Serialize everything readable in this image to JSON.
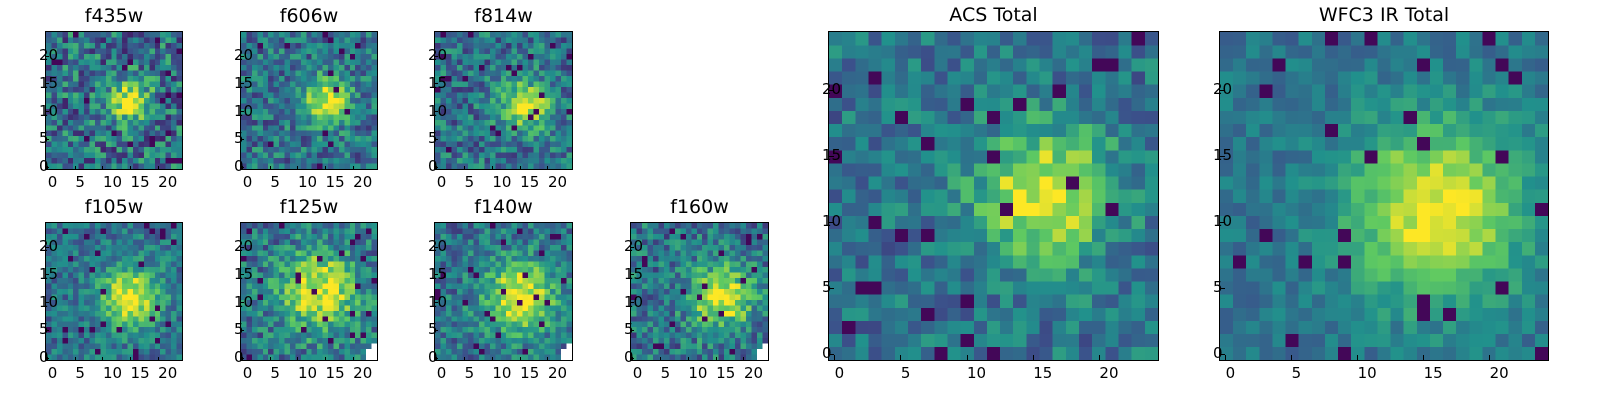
{
  "colormap": [
    "#440154",
    "#3b528b",
    "#21918c",
    "#5ec962",
    "#fde725"
  ],
  "chart_data": [
    {
      "type": "heatmap",
      "title": "f435w",
      "grid_size": 25,
      "peak": [
        12,
        15
      ],
      "spread": 2.6,
      "noise": 0.55,
      "blank_corner": false,
      "xticks": [
        0,
        5,
        10,
        15,
        20
      ],
      "yticks": [
        0,
        5,
        10,
        15,
        20
      ]
    },
    {
      "type": "heatmap",
      "title": "f606w",
      "grid_size": 25,
      "peak": [
        12,
        15
      ],
      "spread": 3.0,
      "noise": 0.45,
      "blank_corner": false,
      "xticks": [
        0,
        5,
        10,
        15,
        20
      ],
      "yticks": [
        0,
        5,
        10,
        15,
        20
      ]
    },
    {
      "type": "heatmap",
      "title": "f814w",
      "grid_size": 25,
      "peak": [
        11,
        16
      ],
      "spread": 3.0,
      "noise": 0.45,
      "blank_corner": false,
      "xticks": [
        0,
        5,
        10,
        15,
        20
      ],
      "yticks": [
        0,
        5,
        10,
        15,
        20
      ]
    },
    {
      "type": "heatmap",
      "title": "f105w",
      "grid_size": 25,
      "peak": [
        11,
        15
      ],
      "spread": 3.8,
      "noise": 0.35,
      "blank_corner": false,
      "xticks": [
        0,
        5,
        10,
        15,
        20
      ],
      "yticks": [
        0,
        5,
        10,
        15,
        20
      ]
    },
    {
      "type": "heatmap",
      "title": "f125w",
      "grid_size": 25,
      "peak": [
        12,
        14
      ],
      "spread": 5.0,
      "noise": 0.45,
      "blank_corner": true,
      "xticks": [
        0,
        5,
        10,
        15,
        20
      ],
      "yticks": [
        0,
        5,
        10,
        15,
        20
      ]
    },
    {
      "type": "heatmap",
      "title": "f140w",
      "grid_size": 25,
      "peak": [
        11,
        15
      ],
      "spread": 4.5,
      "noise": 0.4,
      "blank_corner": true,
      "xticks": [
        0,
        5,
        10,
        15,
        20
      ],
      "yticks": [
        0,
        5,
        10,
        15,
        20
      ]
    },
    {
      "type": "heatmap",
      "title": "f160w",
      "grid_size": 25,
      "peak": [
        11,
        16
      ],
      "spread": 4.0,
      "noise": 0.45,
      "blank_corner": true,
      "xticks": [
        0,
        5,
        10,
        15,
        20
      ],
      "yticks": [
        0,
        5,
        10,
        15,
        20
      ]
    },
    {
      "type": "heatmap",
      "title": "ACS Total",
      "grid_size": 25,
      "peak": [
        12,
        16
      ],
      "spread": 3.6,
      "noise": 0.35,
      "blank_corner": false,
      "xticks": [
        0,
        5,
        10,
        15,
        20
      ],
      "yticks": [
        0,
        5,
        10,
        15,
        20
      ]
    },
    {
      "type": "heatmap",
      "title": "WFC3 IR Total",
      "grid_size": 25,
      "peak": [
        11,
        16
      ],
      "spread": 4.8,
      "noise": 0.22,
      "blank_corner": false,
      "xticks": [
        0,
        5,
        10,
        15,
        20
      ],
      "yticks": [
        0,
        5,
        10,
        15,
        20
      ]
    }
  ]
}
